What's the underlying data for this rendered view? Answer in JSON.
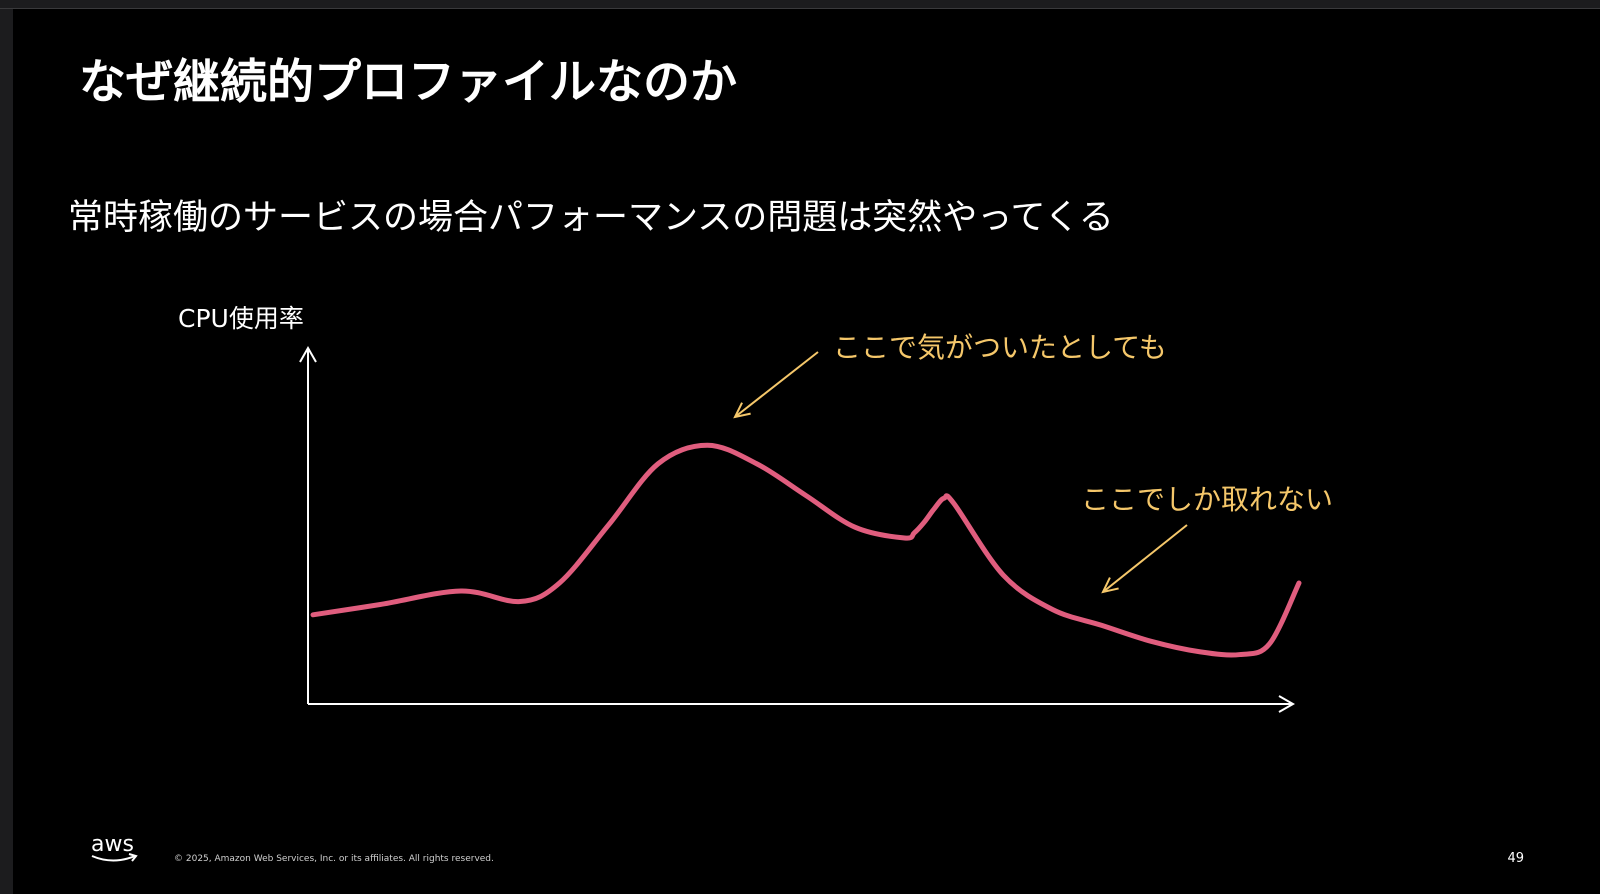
{
  "slide": {
    "title": "なぜ継続的プロファイルなのか",
    "subtitle": "常時稼働のサービスの場合パフォーマンスの問題は突然やってくる",
    "page_number": "49",
    "footer": {
      "logo_text": "aws",
      "copyright": "© 2025, Amazon Web Services, Inc. or its affiliates. All rights reserved."
    }
  },
  "chart_data": {
    "type": "line",
    "ylabel": "CPU使用率",
    "xlabel": "",
    "x": [
      0,
      7,
      15,
      21,
      25,
      30,
      35,
      40,
      45,
      50,
      55,
      60,
      61,
      62,
      63,
      64,
      65,
      70,
      75,
      80,
      85,
      90,
      94,
      97,
      100
    ],
    "values": [
      0.28,
      0.32,
      0.37,
      0.33,
      0.4,
      0.62,
      0.85,
      0.92,
      0.85,
      0.73,
      0.61,
      0.57,
      0.59,
      0.63,
      0.68,
      0.72,
      0.7,
      0.43,
      0.3,
      0.24,
      0.18,
      0.14,
      0.13,
      0.17,
      0.4
    ],
    "annotations": [
      {
        "text": "ここで気がついたとしても",
        "x": 42,
        "y": 0.93
      },
      {
        "text": "ここでしか取れない",
        "x": 81,
        "y": 0.36
      }
    ],
    "line_color": "#e05d7e",
    "annotation_color": "#f5c76a",
    "axis_color": "#ffffff"
  }
}
